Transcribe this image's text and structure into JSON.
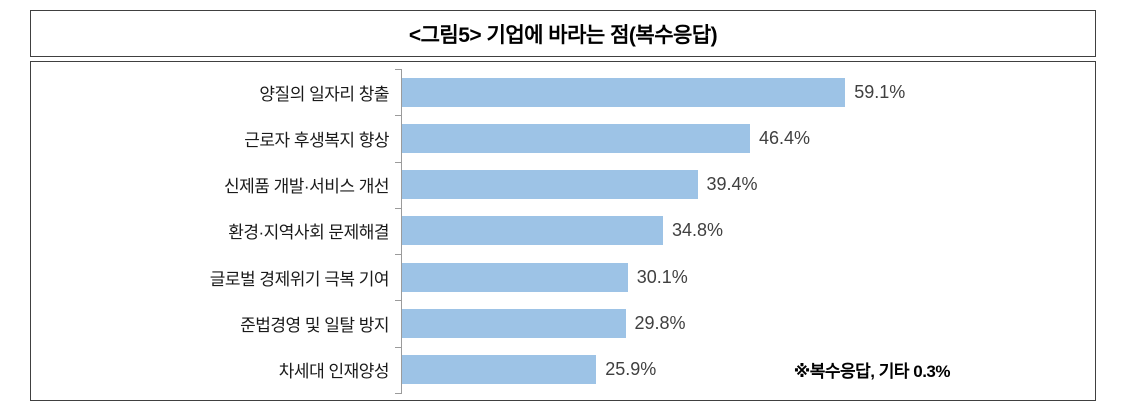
{
  "header": {
    "title": "<그림5> 기업에 바라는 점(복수응답)"
  },
  "chart_data": {
    "type": "bar",
    "orientation": "horizontal",
    "title": "<그림5> 기업에 바라는 점(복수응답)",
    "categories": [
      "양질의 일자리 창출",
      "근로자 후생복지 향상",
      "신제품 개발·서비스 개선",
      "환경·지역사회 문제해결",
      "글로벌 경제위기 극복 기여",
      "준법경영 및 일탈 방지",
      "차세대 인재양성"
    ],
    "values": [
      59.1,
      46.4,
      39.4,
      34.8,
      30.1,
      29.8,
      25.9
    ],
    "value_labels": [
      "59.1%",
      "46.4%",
      "39.4%",
      "34.8%",
      "30.1%",
      "29.8%",
      "25.9%"
    ],
    "annotation": "※복수응답, 기타 0.3%",
    "bar_color": "#9DC3E6",
    "axis_color": "#9b9b9b",
    "xlim": [
      0,
      65
    ],
    "legend": "none",
    "grid": "category tick marks only, no gridlines"
  }
}
